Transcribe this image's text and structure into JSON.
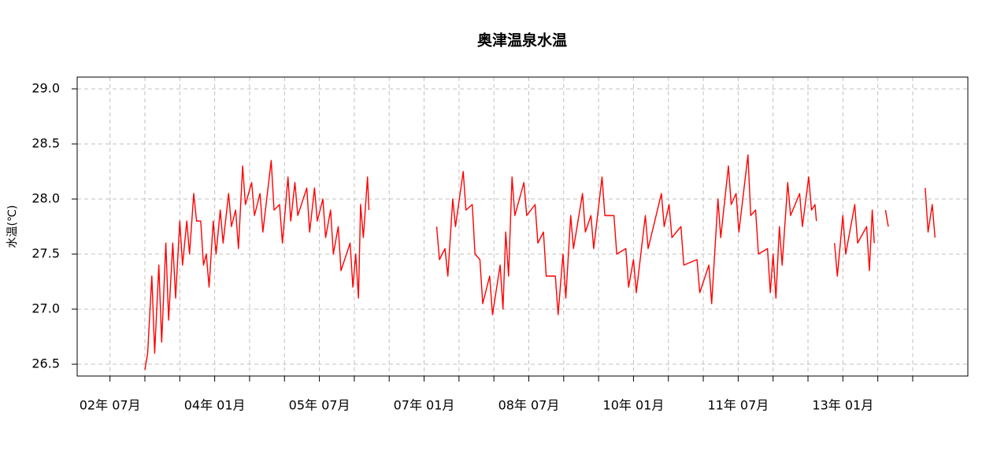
{
  "chart_data": {
    "type": "line",
    "title": "奥津温泉水温",
    "y_label": "水温(℃)",
    "color": "#ff0000",
    "grid": true,
    "xlim": [
      2.03,
      14.79
    ],
    "xticks": [
      {
        "value": 2.5,
        "label": "02年 07月"
      },
      {
        "value": 3.0,
        "label": null
      },
      {
        "value": 3.5,
        "label": null
      },
      {
        "value": 4.0,
        "label": "04年 01月"
      },
      {
        "value": 4.5,
        "label": null
      },
      {
        "value": 5.0,
        "label": null
      },
      {
        "value": 5.5,
        "label": "05年 07月"
      },
      {
        "value": 6.0,
        "label": null
      },
      {
        "value": 6.5,
        "label": null
      },
      {
        "value": 7.0,
        "label": "07年 01月"
      },
      {
        "value": 7.5,
        "label": null
      },
      {
        "value": 8.0,
        "label": null
      },
      {
        "value": 8.5,
        "label": "08年 07月"
      },
      {
        "value": 9.0,
        "label": null
      },
      {
        "value": 9.5,
        "label": null
      },
      {
        "value": 10.0,
        "label": "10年 01月"
      },
      {
        "value": 10.5,
        "label": null
      },
      {
        "value": 11.0,
        "label": null
      },
      {
        "value": 11.5,
        "label": "11年 07月"
      },
      {
        "value": 12.0,
        "label": null
      },
      {
        "value": 12.5,
        "label": null
      },
      {
        "value": 13.0,
        "label": "13年 01月"
      },
      {
        "value": 13.5,
        "label": null
      },
      {
        "value": 14.0,
        "label": null
      }
    ],
    "ylim": [
      26.393,
      29.107
    ],
    "yticks": [
      26.5,
      {
        "value": 27,
        "label": "27.0"
      },
      27.5,
      {
        "value": 28,
        "label": "28.0"
      },
      28.5,
      {
        "value": 29,
        "label": "29.0"
      }
    ],
    "x": [
      3.0,
      3.04,
      3.1,
      3.14,
      3.2,
      3.24,
      3.3,
      3.34,
      3.4,
      3.44,
      3.5,
      3.54,
      3.6,
      3.64,
      3.7,
      3.74,
      3.8,
      3.84,
      3.88,
      3.92,
      3.98,
      4.02,
      4.08,
      4.12,
      4.2,
      4.24,
      4.3,
      4.34,
      4.4,
      4.44,
      4.53,
      4.57,
      4.65,
      4.69,
      4.81,
      4.85,
      4.93,
      4.97,
      5.05,
      5.09,
      5.15,
      5.19,
      5.32,
      5.36,
      5.43,
      5.47,
      5.55,
      5.59,
      5.66,
      5.7,
      5.77,
      5.81,
      5.94,
      5.98,
      6.02,
      6.06,
      6.09,
      6.13,
      6.19,
      6.21,
      null,
      7.18,
      7.22,
      7.3,
      7.34,
      7.41,
      7.45,
      7.56,
      7.6,
      7.69,
      7.73,
      7.8,
      7.84,
      7.94,
      7.98,
      8.09,
      8.13,
      8.17,
      8.21,
      8.26,
      8.3,
      8.43,
      8.47,
      8.59,
      8.63,
      8.71,
      8.75,
      8.88,
      8.92,
      8.99,
      9.03,
      9.1,
      9.14,
      9.27,
      9.31,
      9.39,
      9.43,
      9.55,
      9.59,
      9.72,
      9.76,
      9.89,
      9.93,
      10.0,
      10.04,
      10.17,
      10.21,
      10.4,
      10.44,
      10.51,
      10.55,
      10.68,
      10.72,
      10.91,
      10.95,
      11.08,
      11.12,
      11.21,
      11.25,
      11.36,
      11.4,
      11.47,
      11.51,
      11.64,
      11.68,
      11.75,
      11.79,
      11.92,
      11.96,
      12.0,
      12.04,
      12.09,
      12.13,
      12.21,
      12.25,
      12.38,
      12.42,
      12.51,
      12.55,
      12.6,
      12.62,
      null,
      12.88,
      12.92,
      13.0,
      13.04,
      13.17,
      13.21,
      13.34,
      13.38,
      13.42,
      13.45,
      null,
      13.61,
      13.65,
      null,
      14.18,
      14.22,
      14.28,
      14.32
    ],
    "values": [
      26.45,
      26.6,
      27.3,
      26.6,
      27.4,
      26.7,
      27.6,
      26.9,
      27.6,
      27.1,
      27.8,
      27.4,
      27.8,
      27.5,
      28.05,
      27.8,
      27.8,
      27.4,
      27.5,
      27.2,
      27.8,
      27.5,
      27.9,
      27.6,
      28.05,
      27.75,
      27.9,
      27.55,
      28.3,
      27.95,
      28.15,
      27.85,
      28.05,
      27.7,
      28.35,
      27.9,
      27.95,
      27.6,
      28.2,
      27.8,
      28.15,
      27.85,
      28.1,
      27.7,
      28.1,
      27.8,
      28.0,
      27.65,
      27.9,
      27.5,
      27.75,
      27.35,
      27.6,
      27.2,
      27.5,
      27.1,
      27.95,
      27.65,
      28.2,
      27.9,
      null,
      27.75,
      27.45,
      27.55,
      27.3,
      28.0,
      27.75,
      28.25,
      27.9,
      27.95,
      27.5,
      27.45,
      27.05,
      27.3,
      26.95,
      27.4,
      27.0,
      27.7,
      27.3,
      28.2,
      27.85,
      28.15,
      27.85,
      27.95,
      27.6,
      27.7,
      27.3,
      27.3,
      26.95,
      27.5,
      27.1,
      27.85,
      27.55,
      28.05,
      27.7,
      27.85,
      27.55,
      28.2,
      27.85,
      27.85,
      27.5,
      27.55,
      27.2,
      27.45,
      27.15,
      27.85,
      27.55,
      28.05,
      27.75,
      27.95,
      27.65,
      27.75,
      27.4,
      27.45,
      27.15,
      27.4,
      27.05,
      28.0,
      27.65,
      28.3,
      27.95,
      28.05,
      27.7,
      28.4,
      27.85,
      27.9,
      27.5,
      27.55,
      27.15,
      27.5,
      27.1,
      27.75,
      27.4,
      28.15,
      27.85,
      28.05,
      27.75,
      28.2,
      27.9,
      27.95,
      27.8,
      null,
      27.6,
      27.3,
      27.85,
      27.5,
      27.95,
      27.6,
      27.75,
      27.35,
      27.9,
      27.6,
      null,
      27.9,
      27.75,
      null,
      28.1,
      27.7,
      27.95,
      27.65
    ]
  }
}
